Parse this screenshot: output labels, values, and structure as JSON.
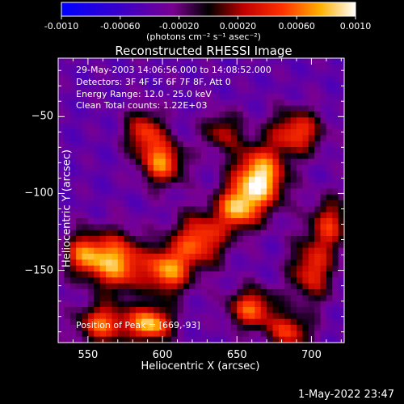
{
  "chart_data": {
    "type": "heatmap",
    "title": "Reconstructed RHESSI Image",
    "xlabel": "Heliocentric X (arcsec)",
    "ylabel": "Heliocentric Y (arcsec)",
    "xlim": [
      530,
      722
    ],
    "ylim": [
      -197,
      -12
    ],
    "x_ticks": [
      550,
      600,
      650,
      700
    ],
    "x_tick_labels": [
      "550",
      "600",
      "650",
      "700"
    ],
    "y_ticks": [
      -50,
      -100,
      -150
    ],
    "y_tick_labels": [
      "-50",
      "-100",
      "-150"
    ],
    "colorbar": {
      "min": -0.001,
      "max": 0.001,
      "ticks": [
        -0.001,
        -0.0006,
        -0.0002,
        0.0002,
        0.0006,
        0.001
      ],
      "tick_labels": [
        "-0.0010",
        "-0.00060",
        "-0.00020",
        "0.00020",
        "0.00060",
        "0.0010"
      ],
      "units_label": "(photons cm⁻² s⁻¹ asec⁻²)"
    },
    "annotations": {
      "time_range": "29-May-2003 14:06:56.000 to 14:08:52.000",
      "detectors": "Detectors: 3F 4F 5F 6F 7F 8F, Att 0",
      "energy_range": "Energy Range: 12.0 - 25.0 keV",
      "method_counts": "Clean     Total counts: 1.22E+03",
      "peak_position": "Position of Peak = [669,-93]"
    },
    "peak_position": [
      669,
      -93
    ],
    "sources": [
      {
        "x": 665,
        "y": -90,
        "amp": 1.0,
        "sx": 12,
        "sy": 14
      },
      {
        "x": 650,
        "y": -110,
        "amp": 0.75,
        "sx": 10,
        "sy": 10
      },
      {
        "x": 625,
        "y": -130,
        "amp": 0.7,
        "sx": 12,
        "sy": 12
      },
      {
        "x": 603,
        "y": -150,
        "amp": 0.8,
        "sx": 11,
        "sy": 11
      },
      {
        "x": 570,
        "y": -145,
        "amp": 0.85,
        "sx": 11,
        "sy": 13
      },
      {
        "x": 548,
        "y": -140,
        "amp": 0.75,
        "sx": 9,
        "sy": 10
      },
      {
        "x": 600,
        "y": -80,
        "amp": 0.75,
        "sx": 10,
        "sy": 10
      },
      {
        "x": 588,
        "y": -60,
        "amp": 0.6,
        "sx": 9,
        "sy": 10
      },
      {
        "x": 560,
        "y": -185,
        "amp": 0.7,
        "sx": 12,
        "sy": 9
      },
      {
        "x": 592,
        "y": -185,
        "amp": 0.9,
        "sx": 10,
        "sy": 8
      },
      {
        "x": 700,
        "y": -150,
        "amp": 0.6,
        "sx": 10,
        "sy": 14
      },
      {
        "x": 712,
        "y": -120,
        "amp": 0.55,
        "sx": 9,
        "sy": 12
      },
      {
        "x": 690,
        "y": -60,
        "amp": 0.65,
        "sx": 12,
        "sy": 10
      },
      {
        "x": 640,
        "y": -60,
        "amp": 0.45,
        "sx": 9,
        "sy": 9
      },
      {
        "x": 660,
        "y": -175,
        "amp": 0.7,
        "sx": 11,
        "sy": 9
      },
      {
        "x": 685,
        "y": -190,
        "amp": 0.6,
        "sx": 10,
        "sy": 8
      }
    ]
  },
  "timestamp": "1-May-2022 23:47"
}
